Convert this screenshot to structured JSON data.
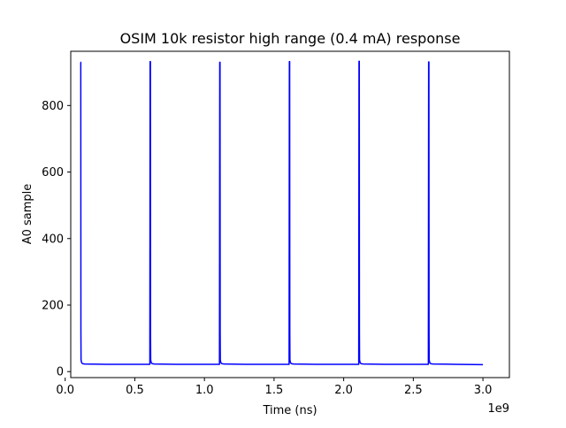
{
  "chart_data": {
    "type": "line",
    "title": "OSIM 10k resistor high range (0.4 mA) response",
    "xlabel": "Time (ns)",
    "ylabel": "A0 sample",
    "x_offset_label": "1e9",
    "xlim": [
      0.04,
      3.19
    ],
    "ylim": [
      -18,
      963
    ],
    "x_ticks": [
      0.0,
      0.5,
      1.0,
      1.5,
      2.0,
      2.5,
      3.0
    ],
    "x_tick_labels": [
      "0.0",
      "0.5",
      "1.0",
      "1.5",
      "2.0",
      "2.5",
      "3.0"
    ],
    "y_ticks": [
      0,
      200,
      400,
      600,
      800
    ],
    "y_tick_labels": [
      "0",
      "200",
      "400",
      "600",
      "800"
    ],
    "grid": false,
    "series": [
      {
        "color": "#0000ff",
        "x": [
          0.11,
          0.112,
          0.113,
          0.114,
          0.118,
          0.124,
          0.14,
          0.3,
          0.5,
          0.608,
          0.61,
          0.612,
          0.613,
          0.614,
          0.618,
          0.624,
          0.64,
          0.8,
          1.0,
          1.108,
          1.11,
          1.112,
          1.113,
          1.114,
          1.118,
          1.124,
          1.14,
          1.3,
          1.5,
          1.608,
          1.61,
          1.612,
          1.613,
          1.614,
          1.618,
          1.624,
          1.64,
          1.8,
          2.0,
          2.108,
          2.11,
          2.112,
          2.113,
          2.114,
          2.118,
          2.124,
          2.14,
          2.3,
          2.5,
          2.608,
          2.61,
          2.612,
          2.613,
          2.614,
          2.618,
          2.624,
          2.64,
          2.8,
          3.0
        ],
        "y": [
          930,
          930,
          120,
          35,
          27,
          24,
          23,
          22,
          22,
          22,
          932,
          932,
          120,
          35,
          27,
          24,
          23,
          22,
          22,
          22,
          930,
          930,
          120,
          35,
          27,
          24,
          23,
          22,
          22,
          22,
          932,
          932,
          120,
          35,
          27,
          24,
          23,
          22,
          22,
          22,
          933,
          933,
          120,
          35,
          27,
          24,
          23,
          22,
          22,
          22,
          931,
          931,
          120,
          35,
          27,
          24,
          23,
          22,
          21
        ]
      }
    ]
  }
}
